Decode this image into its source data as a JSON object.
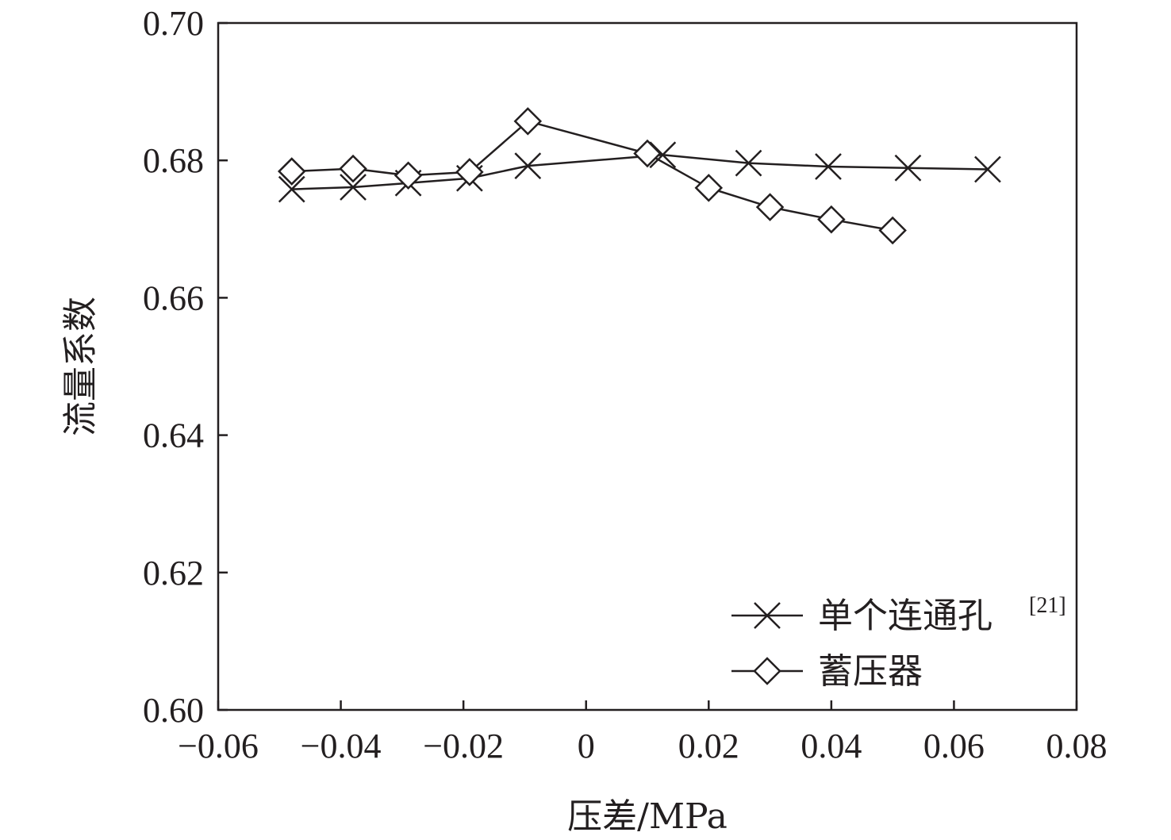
{
  "chart_data": {
    "type": "line",
    "title": "",
    "xlabel": "压差/MPa",
    "ylabel": "流量系数",
    "xlim": [
      -0.06,
      0.08
    ],
    "ylim": [
      0.6,
      0.7
    ],
    "x_ticks": [
      -0.06,
      -0.04,
      -0.02,
      0,
      0.02,
      0.04,
      0.06,
      0.08
    ],
    "x_tick_labels": [
      "−0.06",
      "−0.04",
      "−0.02",
      "0",
      "0.02",
      "0.04",
      "0.06",
      "0.08"
    ],
    "y_ticks": [
      0.6,
      0.62,
      0.64,
      0.66,
      0.68,
      0.7
    ],
    "y_tick_labels": [
      "0.60",
      "0.62",
      "0.64",
      "0.66",
      "0.68",
      "0.70"
    ],
    "grid": false,
    "legend_position": "bottom-right",
    "series": [
      {
        "name": "单个连通孔",
        "name_sup": "[21]",
        "marker": "x",
        "color": "#231f20",
        "x": [
          -0.048,
          -0.038,
          -0.029,
          -0.019,
          -0.0095,
          0.0125,
          0.0265,
          0.0395,
          0.0525,
          0.0655
        ],
        "y": [
          0.6758,
          0.6761,
          0.6767,
          0.6774,
          0.6792,
          0.6808,
          0.6796,
          0.6791,
          0.6789,
          0.6787
        ]
      },
      {
        "name": "蓄压器",
        "marker": "diamond",
        "color": "#231f20",
        "x": [
          -0.048,
          -0.038,
          -0.029,
          -0.019,
          -0.0095,
          0.01,
          0.02,
          0.03,
          0.04,
          0.05
        ],
        "y": [
          0.6784,
          0.6788,
          0.6778,
          0.6783,
          0.6857,
          0.681,
          0.676,
          0.6732,
          0.6714,
          0.6698
        ]
      }
    ]
  }
}
